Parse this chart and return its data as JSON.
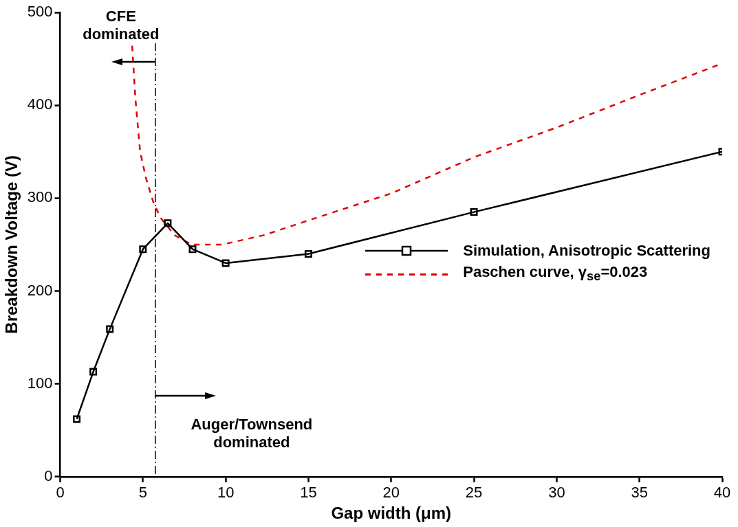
{
  "chart_data": {
    "type": "line",
    "xlabel": "Gap width (μm)",
    "ylabel": "Breakdown Voltage (V)",
    "xlim": [
      0,
      40
    ],
    "xticks": [
      0,
      5,
      10,
      15,
      20,
      25,
      30,
      35,
      40
    ],
    "ylim": [
      0,
      500
    ],
    "yticks": [
      0,
      100,
      200,
      300,
      400,
      500
    ],
    "grid": false,
    "legend": "right",
    "series": [
      {
        "name": "Simulation, Anisotropic Scattering",
        "color": "#000000",
        "marker": "square",
        "line_style": "solid",
        "x": [
          1,
          2,
          3,
          5,
          6.5,
          8,
          10,
          15,
          25,
          40
        ],
        "values": [
          62,
          113,
          159,
          245,
          273,
          245,
          230,
          240,
          285,
          350
        ]
      },
      {
        "name": "Paschen curve, γ$_{se}$=0.023",
        "color": "#dd0000",
        "marker": "none",
        "line_style": "dashed",
        "x": [
          4.35,
          4.54,
          4.83,
          5.19,
          5.62,
          6.05,
          6.92,
          7.93,
          9.8,
          12.3,
          15,
          20,
          25,
          30,
          35,
          40
        ],
        "values": [
          464,
          408,
          350,
          321,
          296,
          279,
          260,
          250,
          250,
          260,
          276,
          305,
          344,
          376,
          411,
          445
        ]
      }
    ],
    "ref_lines": [
      {
        "axis": "x",
        "value": 5.75,
        "color": "#000000",
        "line_style": "dashed"
      }
    ],
    "annotations": [
      {
        "text": "CFE dominated",
        "x": 5.75,
        "y": 447
      },
      {
        "text": "Auger/Townsend dominated",
        "x": 5.75,
        "y": 87
      }
    ]
  }
}
